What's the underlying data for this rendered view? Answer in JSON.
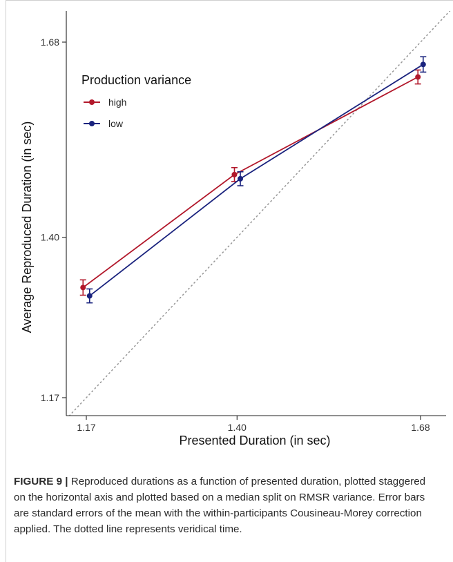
{
  "caption": {
    "label": "FIGURE 9 |",
    "text": " Reproduced durations as a function of presented duration, plotted staggered on the horizontal axis and plotted based on a median split on RMSR variance. Error bars are standard errors of the mean with the within-participants Cousineau-Morey correction applied. The dotted line represents veridical time."
  },
  "chart_data": {
    "type": "line",
    "title": "",
    "xlabel": "Presented Duration (in sec)",
    "ylabel": "Average Reproduced Duration (in sec)",
    "xlim": [
      1.155,
      1.71
    ],
    "ylim": [
      1.155,
      1.715
    ],
    "x_ticks": [
      1.17,
      1.4,
      1.68
    ],
    "x_tick_labels": [
      "1.17",
      "1.40",
      "1.68"
    ],
    "y_ticks": [
      1.17,
      1.4,
      1.68
    ],
    "y_tick_labels": [
      "1.17",
      "1.40",
      "1.68"
    ],
    "grid": false,
    "legend": {
      "title": "Production variance",
      "placement": "top-left"
    },
    "reference_line": {
      "type": "identity",
      "style": "dotted",
      "color": "#9a9a9a"
    },
    "series": [
      {
        "name": "high",
        "color": "#b2182b",
        "points": [
          {
            "x": 1.165,
            "y": 1.328,
            "err": 0.011
          },
          {
            "x": 1.396,
            "y": 1.49,
            "err": 0.01
          },
          {
            "x": 1.676,
            "y": 1.63,
            "err": 0.01
          }
        ]
      },
      {
        "name": "low",
        "color": "#1a237e",
        "points": [
          {
            "x": 1.175,
            "y": 1.316,
            "err": 0.01
          },
          {
            "x": 1.405,
            "y": 1.484,
            "err": 0.01
          },
          {
            "x": 1.684,
            "y": 1.648,
            "err": 0.011
          }
        ]
      }
    ]
  }
}
